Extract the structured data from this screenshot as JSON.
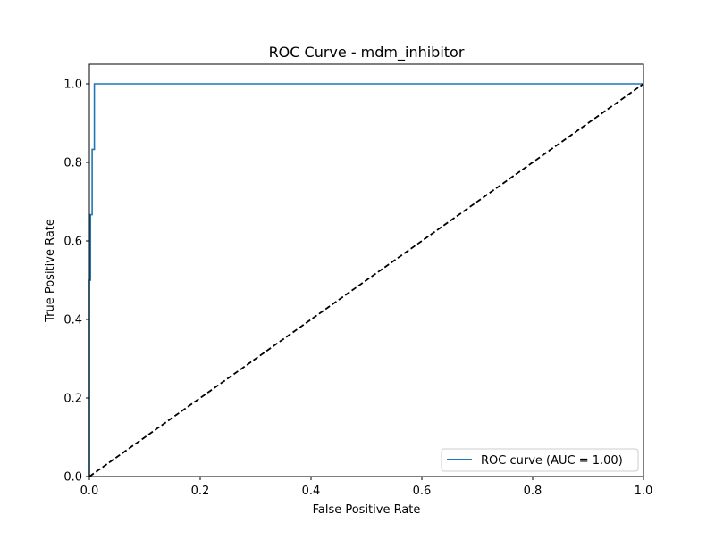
{
  "chart_data": {
    "type": "line",
    "title": "ROC Curve - mdm_inhibitor",
    "xlabel": "False Positive Rate",
    "ylabel": "True Positive Rate",
    "xlim": [
      0.0,
      1.0
    ],
    "ylim": [
      0.0,
      1.05
    ],
    "grid": false,
    "legend_position": "lower-right",
    "x_ticks": [
      "0.0",
      "0.2",
      "0.4",
      "0.6",
      "0.8",
      "1.0"
    ],
    "y_ticks": [
      "0.0",
      "0.2",
      "0.4",
      "0.6",
      "0.8",
      "1.0"
    ],
    "x_tick_values": [
      0.0,
      0.2,
      0.4,
      0.6,
      0.8,
      1.0
    ],
    "y_tick_values": [
      0.0,
      0.2,
      0.4,
      0.6,
      0.8,
      1.0
    ],
    "series": [
      {
        "name": "ROC curve (AUC = 1.00)",
        "color": "#1f77b4",
        "style": "solid",
        "x": [
          0.0,
          0.0,
          0.002,
          0.002,
          0.005,
          0.005,
          0.009,
          0.009,
          1.0
        ],
        "y": [
          0.0,
          0.5,
          0.5,
          0.667,
          0.667,
          0.833,
          0.833,
          1.0,
          1.0
        ]
      },
      {
        "name": "",
        "color": "#000000",
        "style": "dashed",
        "x": [
          0.0,
          1.0
        ],
        "y": [
          0.0,
          1.0
        ]
      }
    ]
  }
}
